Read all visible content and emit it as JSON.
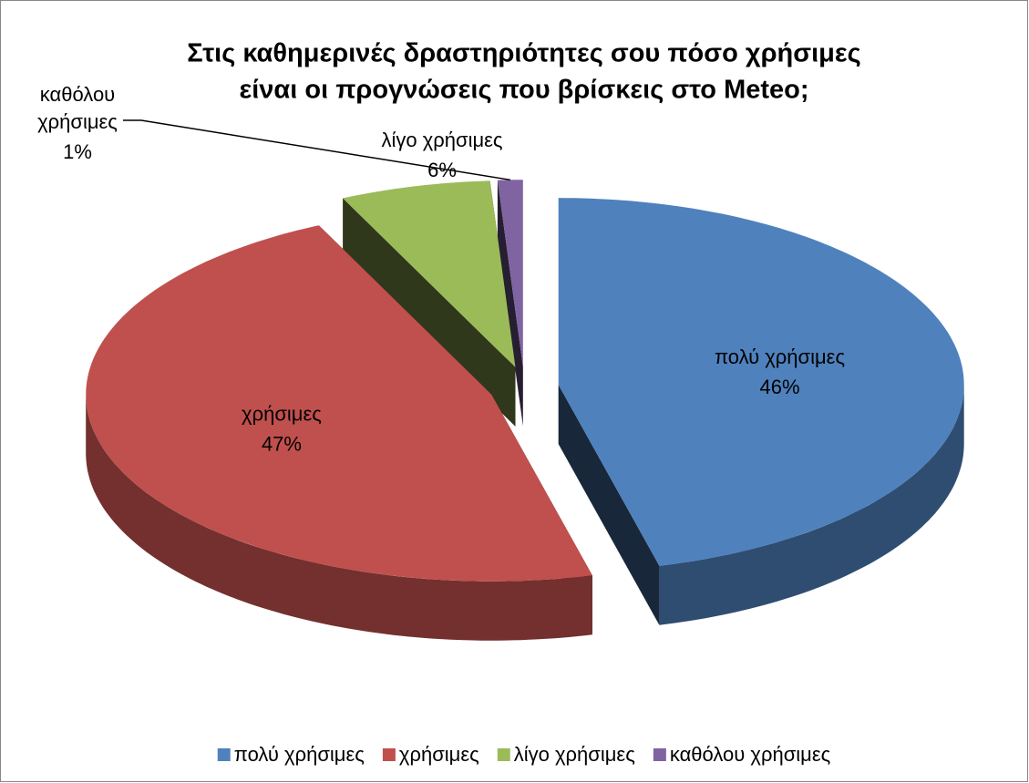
{
  "chart_data": {
    "type": "pie3d",
    "title": [
      "Στις καθημερινές δραστηριότητες σου πόσο χρήσιμες",
      "είναι οι προγνώσεις που βρίσκεις στο Meteo;"
    ],
    "categories": [
      "πολύ χρήσιμες",
      "χρήσιμες",
      "λίγο χρήσιμες",
      "καθόλου χρήσιμες"
    ],
    "values": [
      46,
      47,
      6,
      1
    ],
    "value_labels": [
      "46%",
      "47%",
      "6%",
      "1%"
    ],
    "colors": [
      "#4f81bd",
      "#c0504d",
      "#9bbb59",
      "#8064a2"
    ],
    "legend": "bottom"
  }
}
